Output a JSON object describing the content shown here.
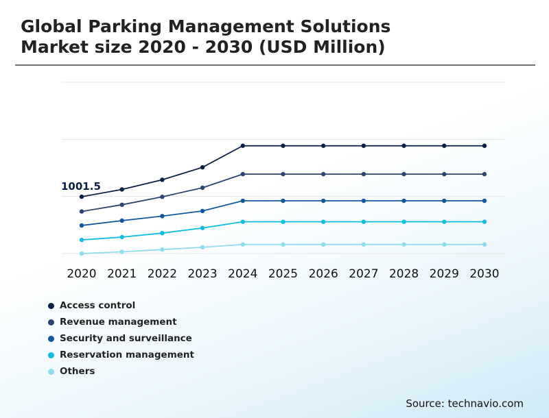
{
  "chart_data": {
    "type": "line",
    "title": "Global Parking Management Solutions Market size 2020 - 2030 (USD Million)",
    "title_lines": [
      "Global Parking Management Solutions",
      "Market size 2020 - 2030 (USD Million)"
    ],
    "categories": [
      "2020",
      "2021",
      "2022",
      "2023",
      "2024",
      "2025",
      "2026",
      "2027",
      "2028",
      "2029",
      "2030"
    ],
    "ylim": [
      0,
      3020
    ],
    "grid": true,
    "annotation": {
      "text": "1001.5",
      "series": "Access control",
      "category": "2020"
    },
    "legend_position": "bottom-left",
    "source": "Source: technavio.com",
    "series": [
      {
        "name": "Access control",
        "color": "#0a1f44",
        "values": [
          1001.5,
          1130,
          1300,
          1520,
          1900,
          1900,
          1900,
          1900,
          1900,
          1900,
          1900
        ]
      },
      {
        "name": "Revenue management",
        "color": "#2c4470",
        "values": [
          742,
          860,
          1000,
          1160,
          1400,
          1400,
          1400,
          1400,
          1400,
          1400,
          1400
        ]
      },
      {
        "name": "Security and surveillance",
        "color": "#0f57a0",
        "values": [
          495,
          580,
          660,
          750,
          930,
          930,
          930,
          930,
          930,
          930,
          930
        ]
      },
      {
        "name": "Reservation management",
        "color": "#0ebde0",
        "values": [
          240,
          290,
          360,
          450,
          560,
          560,
          560,
          560,
          560,
          560,
          560
        ]
      },
      {
        "name": "Others",
        "color": "#8fdcef",
        "values": [
          0,
          30,
          70,
          110,
          160,
          160,
          160,
          160,
          160,
          160,
          160
        ]
      }
    ]
  }
}
